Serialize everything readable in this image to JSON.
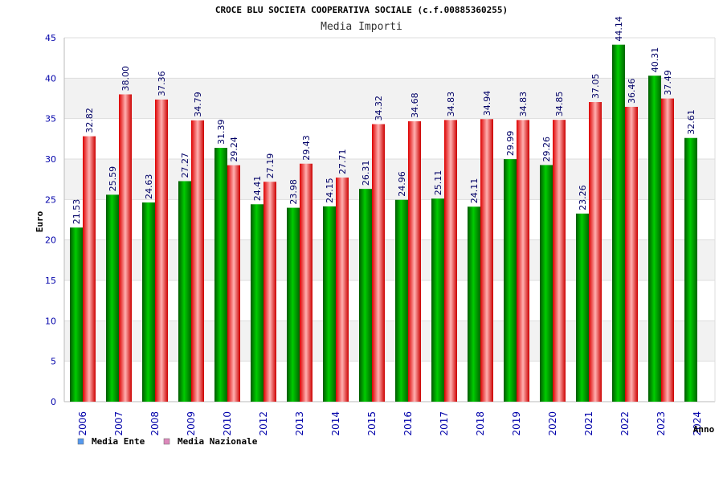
{
  "chart_data": {
    "type": "bar",
    "title": "CROCE BLU SOCIETA COOPERATIVA SOCIALE (c.f.00885360255)",
    "subtitle": "Media Importi",
    "xlabel": "Anno",
    "ylabel": "Euro",
    "ylim": [
      0,
      45
    ],
    "yticks": [
      0,
      5,
      10,
      15,
      20,
      25,
      30,
      35,
      40,
      45
    ],
    "categories": [
      "2006",
      "2007",
      "2008",
      "2009",
      "2010",
      "2012",
      "2013",
      "2014",
      "2015",
      "2016",
      "2017",
      "2018",
      "2019",
      "2020",
      "2021",
      "2022",
      "2023",
      "2024"
    ],
    "series": [
      {
        "name": "Media Ente",
        "values": [
          21.53,
          25.59,
          24.63,
          27.27,
          31.39,
          24.41,
          23.98,
          24.15,
          26.31,
          24.96,
          25.11,
          24.11,
          29.99,
          29.26,
          23.26,
          44.14,
          40.31,
          32.61
        ],
        "labels": [
          "21.53",
          "25.59",
          "24.63",
          "27.27",
          "31.39",
          "24.41",
          "23.98",
          "24.15",
          "26.31",
          "24.96",
          "25.11",
          "24.11",
          "29.99",
          "29.26",
          "23.26",
          "44.14",
          "40.31",
          "32.61"
        ]
      },
      {
        "name": "Media Nazionale",
        "values": [
          32.82,
          38.0,
          37.36,
          34.79,
          29.24,
          27.19,
          29.43,
          27.71,
          34.32,
          34.68,
          34.83,
          34.94,
          34.83,
          34.85,
          37.05,
          36.46,
          37.49,
          null
        ],
        "labels": [
          "32.82",
          "38.00",
          "37.36",
          "34.79",
          "29.24",
          "27.19",
          "29.43",
          "27.71",
          "34.32",
          "34.68",
          "34.83",
          "34.94",
          "34.83",
          "34.85",
          "37.05",
          "36.46",
          "37.49",
          ""
        ]
      }
    ],
    "legend": [
      {
        "name": "Media Ente",
        "color": "#5599ee"
      },
      {
        "name": "Media Nazionale",
        "color": "#dd88bb"
      }
    ],
    "colors": {
      "ente": "#00bb00",
      "nazionale": "#ee3333",
      "band": "#f2f2f2",
      "tick_text": "#0000aa"
    }
  }
}
